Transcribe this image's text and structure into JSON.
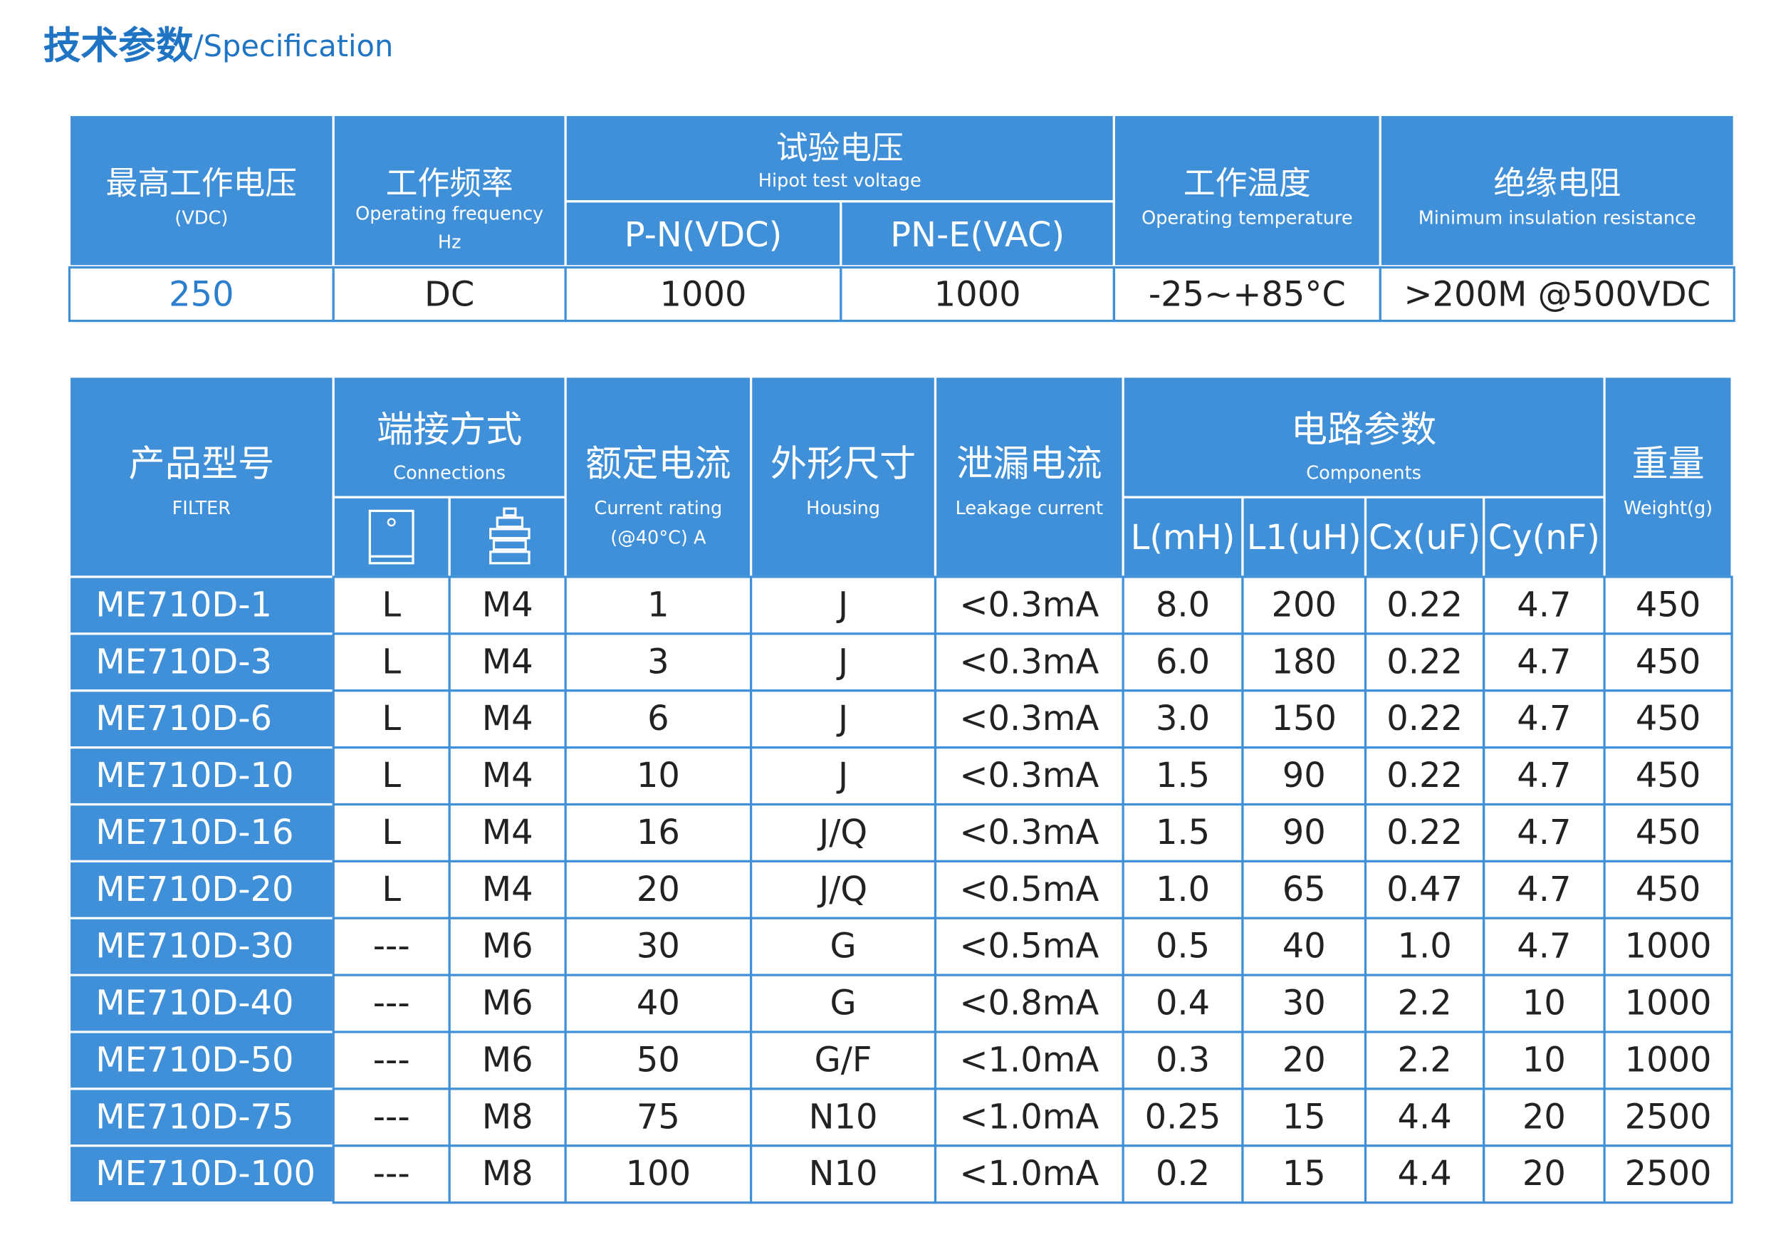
{
  "title": {
    "zh": "技术参数",
    "en": "/Specification"
  },
  "table1": {
    "headers": [
      {
        "zh": "最高工作电压",
        "en": "(VDC)"
      },
      {
        "zh": "工作频率",
        "en": "Operating frequency",
        "en2": "Hz"
      },
      {
        "zh": "试验电压",
        "en": "Hipot test voltage",
        "sub": [
          "P-N(VDC)",
          "PN-E(VAC)"
        ]
      },
      {
        "zh": "工作温度",
        "en": "Operating temperature"
      },
      {
        "zh": "绝缘电阻",
        "en": "Minimum insulation resistance"
      }
    ],
    "row": [
      "250",
      "DC",
      "1000",
      "1000",
      "-25~+85°C",
      ">200M @500VDC"
    ]
  },
  "table2": {
    "headers": [
      {
        "zh": "产品型号",
        "en": "FILTER"
      },
      {
        "zh": "端接方式",
        "en": "Connections"
      },
      {
        "zh": "额定电流",
        "en": "Current rating",
        "en2": "(@40°C)  A"
      },
      {
        "zh": "外形尺寸",
        "en": "Housing"
      },
      {
        "zh": "泄漏电流",
        "en": "Leakage current"
      },
      {
        "zh": "电路参数",
        "en": "Components",
        "sub": [
          "L(mH)",
          "L1(uH)",
          "Cx(uF)",
          "Cy(nF)"
        ]
      },
      {
        "zh": "重量",
        "en": "Weight(g)"
      }
    ],
    "rows": [
      [
        "ME710D-1",
        "L",
        "M4",
        "1",
        "J",
        "<0.3mA",
        "8.0",
        "200",
        "0.22",
        "4.7",
        "450"
      ],
      [
        "ME710D-3",
        "L",
        "M4",
        "3",
        "J",
        "<0.3mA",
        "6.0",
        "180",
        "0.22",
        "4.7",
        "450"
      ],
      [
        "ME710D-6",
        "L",
        "M4",
        "6",
        "J",
        "<0.3mA",
        "3.0",
        "150",
        "0.22",
        "4.7",
        "450"
      ],
      [
        "ME710D-10",
        "L",
        "M4",
        "10",
        "J",
        "<0.3mA",
        "1.5",
        "90",
        "0.22",
        "4.7",
        "450"
      ],
      [
        "ME710D-16",
        "L",
        "M4",
        "16",
        "J/Q",
        "<0.3mA",
        "1.5",
        "90",
        "0.22",
        "4.7",
        "450"
      ],
      [
        "ME710D-20",
        "L",
        "M4",
        "20",
        "J/Q",
        "<0.5mA",
        "1.0",
        "65",
        "0.47",
        "4.7",
        "450"
      ],
      [
        "ME710D-30",
        "---",
        "M6",
        "30",
        "G",
        "<0.5mA",
        "0.5",
        "40",
        "1.0",
        "4.7",
        "1000"
      ],
      [
        "ME710D-40",
        "---",
        "M6",
        "40",
        "G",
        "<0.8mA",
        "0.4",
        "30",
        "2.2",
        "10",
        "1000"
      ],
      [
        "ME710D-50",
        "---",
        "M6",
        "50",
        "G/F",
        "<1.0mA",
        "0.3",
        "20",
        "2.2",
        "10",
        "1000"
      ],
      [
        "ME710D-75",
        "---",
        "M8",
        "75",
        "N10",
        "<1.0mA",
        "0.25",
        "15",
        "4.4",
        "20",
        "2500"
      ],
      [
        "ME710D-100",
        "---",
        "M8",
        "100",
        "N10",
        "<1.0mA",
        "0.2",
        "15",
        "4.4",
        "20",
        "2500"
      ]
    ]
  }
}
